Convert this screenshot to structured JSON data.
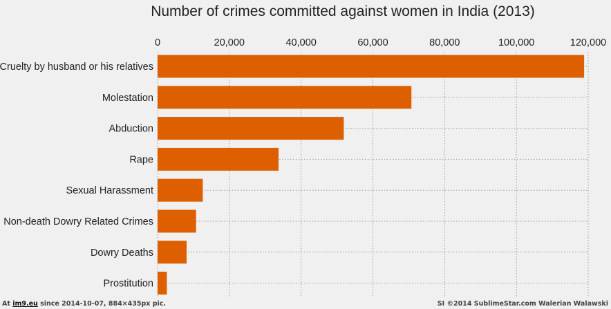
{
  "chart_data": {
    "type": "bar",
    "orientation": "horizontal",
    "title": "Number of crimes committed against women in India (2013)",
    "categories": [
      "Cruelty by husband or his relatives",
      "Molestation",
      "Abduction",
      "Rape",
      "Sexual Harassment",
      "Non-death Dowry Related Crimes",
      "Dowry Deaths",
      "Prostitution"
    ],
    "values": [
      118866,
      70739,
      51881,
      33707,
      12589,
      10709,
      8083,
      2579
    ],
    "xlim": [
      0,
      120000
    ],
    "x_ticks": [
      0,
      20000,
      40000,
      60000,
      80000,
      100000,
      120000
    ],
    "x_tick_labels": [
      "0",
      "20,000",
      "40,000",
      "60,000",
      "80,000",
      "100,000",
      "120,000"
    ],
    "xaxis_position": "top",
    "grid": true,
    "bar_color": "#dd5f00",
    "xlabel": "",
    "ylabel": ""
  },
  "footer": {
    "left_prefix": "At ",
    "left_link": "im9.eu",
    "left_suffix": " since 2014-10-07, 884×435px pic.",
    "right": "SI ©2014 SublimeStar.com Walerian Walawski"
  }
}
